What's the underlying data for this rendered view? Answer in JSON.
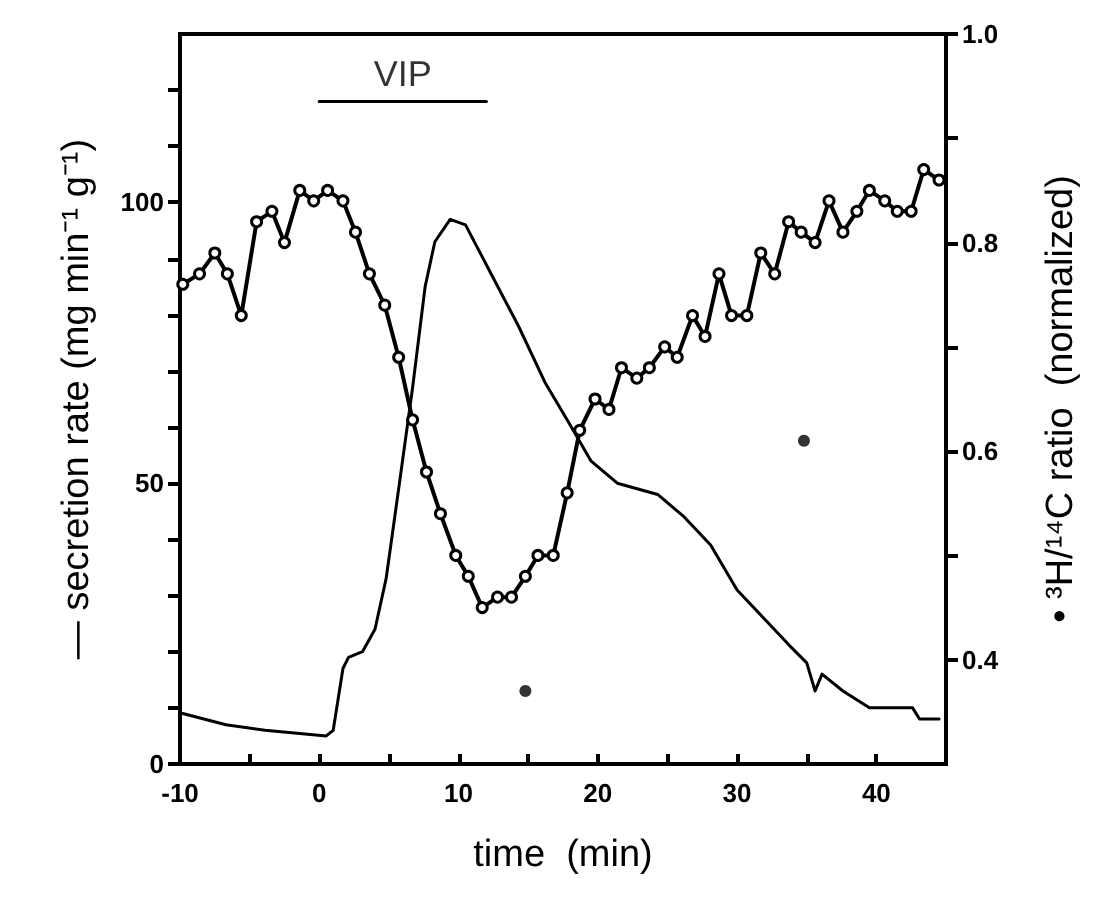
{
  "chart_data": {
    "type": "line",
    "xlabel": "time  (min)",
    "ylabel": "— secretion rate (mg min⁻¹ g⁻¹)",
    "y2label": "• ³H/¹⁴C ratio  (normalized)",
    "xlim": [
      -10,
      45
    ],
    "xticks": [
      -10,
      {
        "value": -5,
        "label": null
      },
      0,
      {
        "value": 5,
        "label": null
      },
      10,
      {
        "value": 15,
        "label": null
      },
      20,
      {
        "value": 25,
        "label": null
      },
      30,
      {
        "value": 35,
        "label": null
      },
      40
    ],
    "ylim": [
      0,
      130
    ],
    "yticks": [
      0,
      {
        "value": 10,
        "label": null
      },
      {
        "value": 20,
        "label": null
      },
      {
        "value": 30,
        "label": null
      },
      {
        "value": 40,
        "label": null
      },
      50,
      {
        "value": 60,
        "label": null
      },
      {
        "value": 70,
        "label": null
      },
      {
        "value": 80,
        "label": null
      },
      {
        "value": 90,
        "label": null
      },
      100,
      {
        "value": 110,
        "label": null
      },
      {
        "value": 120,
        "label": null
      }
    ],
    "y2lim": [
      0.3,
      1.0
    ],
    "y2ticks": [
      0.4,
      {
        "value": 0.5,
        "label": null
      },
      0.6,
      {
        "value": 0.7,
        "label": null
      },
      0.8,
      {
        "value": 0.9,
        "label": null
      },
      {
        "value": 1.0,
        "label": "1.0"
      }
    ],
    "grid": false,
    "line_style": "solid",
    "annotations": [
      {
        "text": "VIP",
        "x": 6,
        "y": 119
      }
    ],
    "series": [
      {
        "type": "line",
        "marker": "none",
        "color": "#000000",
        "x": [
          -9.8,
          -6.7,
          -3.9,
          0.5,
          1.0,
          1.7,
          2.1,
          3.1,
          4.0,
          4.8,
          5.7,
          6.7,
          7.6,
          8.3,
          9.4,
          10.5,
          12.4,
          14.3,
          16.2,
          18.1,
          19.5,
          21.4,
          24.3,
          26.2,
          28.1,
          30.0,
          31.9,
          33.8,
          35.0,
          35.6,
          36.1,
          37.6,
          39.5,
          41.4,
          42.6,
          43.1,
          44.5
        ],
        "values": [
          9,
          7,
          6,
          5,
          6,
          17,
          19,
          20,
          24,
          33,
          49,
          67,
          85,
          93,
          97,
          96,
          87,
          78,
          68,
          60,
          54,
          50,
          48,
          44,
          39,
          31,
          26,
          21,
          18,
          13,
          16,
          13,
          10,
          10,
          10,
          8,
          8
        ]
      },
      {
        "type": "line",
        "marker": "circle",
        "axis": "y2",
        "color": "#000000",
        "x": [
          -9.8,
          -8.6,
          -7.5,
          -6.6,
          -5.6,
          -4.5,
          -3.4,
          -2.5,
          -1.4,
          -0.4,
          0.6,
          1.7,
          2.6,
          3.6,
          4.7,
          5.7,
          6.7,
          7.7,
          8.7,
          9.8,
          10.7,
          11.7,
          12.8,
          13.8,
          14.8,
          15.7,
          16.8,
          17.8,
          18.7,
          19.8,
          20.8,
          21.7,
          22.8,
          23.7,
          24.8,
          25.7,
          26.8,
          27.7,
          28.7,
          29.6,
          30.7,
          31.7,
          32.7,
          33.7,
          34.6,
          35.6,
          36.6,
          37.6,
          38.6,
          39.5,
          40.6,
          41.5,
          42.5,
          43.4,
          44.5
        ],
        "values": [
          0.76,
          0.77,
          0.79,
          0.77,
          0.73,
          0.82,
          0.83,
          0.8,
          0.85,
          0.84,
          0.85,
          0.84,
          0.81,
          0.77,
          0.74,
          0.69,
          0.63,
          0.58,
          0.54,
          0.5,
          0.48,
          0.45,
          0.46,
          0.46,
          0.48,
          0.5,
          0.5,
          0.56,
          0.62,
          0.65,
          0.64,
          0.68,
          0.67,
          0.68,
          0.7,
          0.69,
          0.73,
          0.71,
          0.77,
          0.73,
          0.73,
          0.79,
          0.77,
          0.82,
          0.81,
          0.8,
          0.84,
          0.81,
          0.83,
          0.85,
          0.84,
          0.83,
          0.83,
          0.87,
          0.86
        ]
      },
      {
        "type": "scatter",
        "marker": "circle",
        "axis": "y2",
        "color": "#000000",
        "x": [
          14.8,
          34.8
        ],
        "values": [
          0.37,
          0.61
        ]
      },
      {
        "type": "line",
        "marker": "none",
        "color": "#000000",
        "x": [
          0,
          12
        ],
        "values": [
          118,
          118
        ]
      }
    ]
  }
}
